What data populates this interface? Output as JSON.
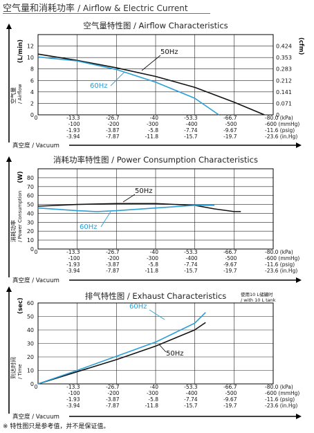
{
  "header": {
    "title_cn": "空气量和消耗功率",
    "title_en": "/ Airflow & Electric Current"
  },
  "footnote": "※ 特性图只是参考值，并不是保证值。",
  "colors": {
    "s50": "#111111",
    "s60": "#2a9fd6",
    "grid": "#222222",
    "axis": "#000000",
    "accent": "#1a8fc9"
  },
  "x_rows": [
    [
      "0",
      "-13.3",
      "-26.7",
      "-40",
      "-53.3",
      "-66.7",
      "-80.0 (kPa)"
    ],
    [
      "",
      "-100",
      "-200",
      "-300",
      "-400",
      "-500",
      "-600 (mmHg)"
    ],
    [
      "",
      "-1.93",
      "-3.87",
      "-5.8",
      "-7.74",
      "-9.67",
      "-11.6 (psig)"
    ],
    [
      "",
      "-3.94",
      "-7.87",
      "-11.8",
      "-15.7",
      "-19.7",
      "-23.6 (in.Hg)"
    ]
  ],
  "x_axis_label": "真空度 / Vacuum",
  "chart_data": [
    {
      "type": "line",
      "title": "空气量特性图 / Airflow Characteristics",
      "ylabel": "空气量 / Airflow",
      "yunit": "(L/min)",
      "y2unit": "(cfm)",
      "xlabel": "真空度 / Vacuum",
      "xlim": [
        0,
        -80
      ],
      "ylim": [
        0,
        14
      ],
      "yticks": [
        0,
        2,
        4,
        6,
        8,
        10,
        12
      ],
      "y2ticks": [
        "0",
        "0.071",
        "0.141",
        "0.212",
        "0.283",
        "0.353",
        "0.424"
      ],
      "grid": true,
      "series": [
        {
          "name": "50Hz",
          "x": [
            0,
            -13.3,
            -26.7,
            -40,
            -53.3,
            -66.7,
            -77
          ],
          "y": [
            10.6,
            9.5,
            8.2,
            6.7,
            4.8,
            2.2,
            0
          ]
        },
        {
          "name": "60Hz",
          "x": [
            0,
            -13.3,
            -26.7,
            -40,
            -53.3,
            -61.5
          ],
          "y": [
            10.1,
            9.4,
            7.9,
            5.7,
            2.9,
            0
          ]
        }
      ]
    },
    {
      "type": "line",
      "title": "消耗功率特性图 / Power Consumption Characteristics",
      "ylabel": "消耗功率 / Power Consumption",
      "yunit": "(W)",
      "xlabel": "真空度 / Vacuum",
      "xlim": [
        0,
        -80
      ],
      "ylim": [
        0,
        90
      ],
      "yticks": [
        0,
        10,
        20,
        30,
        40,
        50,
        60,
        70,
        80
      ],
      "grid": true,
      "series": [
        {
          "name": "50Hz",
          "x": [
            0,
            -13.3,
            -26.7,
            -40,
            -53.3,
            -60,
            -66.7,
            -69
          ],
          "y": [
            48,
            50,
            51,
            51,
            49,
            45,
            42,
            42
          ]
        },
        {
          "name": "60Hz",
          "x": [
            0,
            -13.3,
            -20,
            -26.7,
            -40,
            -53.3,
            -60
          ],
          "y": [
            46,
            43,
            42,
            43,
            46,
            49,
            49
          ]
        }
      ]
    },
    {
      "type": "line",
      "title": "排气特性图 / Exhaust Characteristics",
      "annotation": "使用10 L储罐时 / with 10 L tank",
      "ylabel": "到达时间 / Time",
      "yunit": "(sec)",
      "xlabel": "真空度 / Vacuum",
      "xlim": [
        0,
        -80
      ],
      "ylim": [
        0,
        60
      ],
      "yticks": [
        0,
        10,
        20,
        30,
        40,
        50,
        60
      ],
      "grid": true,
      "series": [
        {
          "name": "50Hz",
          "x": [
            0,
            -13.3,
            -26.7,
            -40,
            -53.3,
            -57
          ],
          "y": [
            0,
            9,
            18,
            28,
            40,
            45.5
          ]
        },
        {
          "name": "60Hz",
          "x": [
            0,
            -13.3,
            -26.7,
            -40,
            -53.3,
            -57
          ],
          "y": [
            0,
            10,
            20.5,
            31,
            45,
            53
          ]
        }
      ]
    }
  ]
}
